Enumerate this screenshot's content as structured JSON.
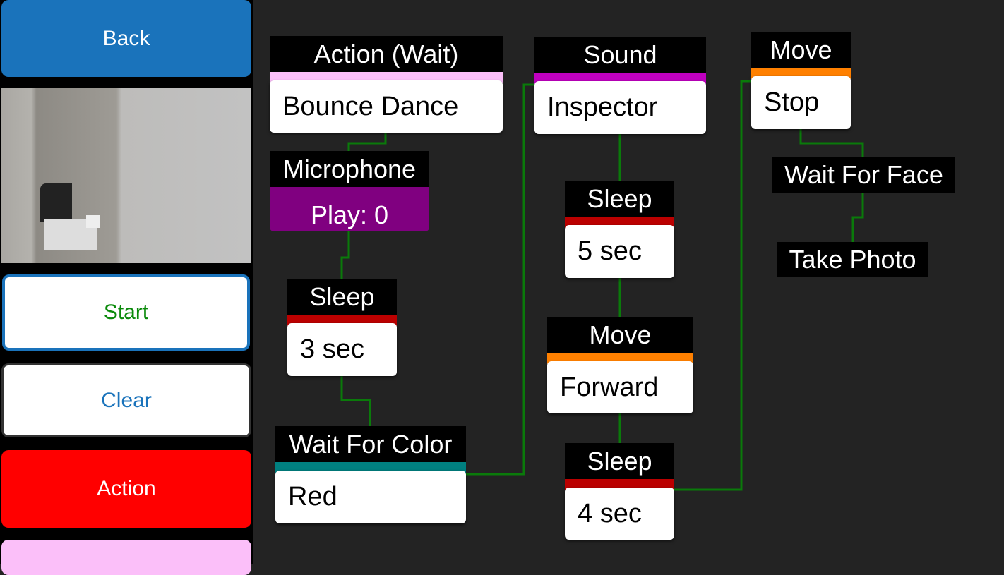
{
  "sidebar": {
    "back": "Back",
    "start": "Start",
    "clear": "Clear",
    "action": "Action"
  },
  "colors": {
    "background": "#232323",
    "connector": "#0a7a0a",
    "back": "#1a73bb",
    "start_text": "#0a8a0a",
    "clear_text": "#1a73bb",
    "action": "#ff0000",
    "pink": "#fbbff9",
    "purple": "#800080",
    "magenta": "#c000c0",
    "red": "#bb0000",
    "teal": "#008080",
    "orange": "#ff8000"
  },
  "nodes": [
    {
      "title": "Action (Wait)",
      "value": "Bounce Dance"
    },
    {
      "title": "Microphone",
      "value": "Play: 0"
    },
    {
      "title": "Sleep",
      "value": "3 sec"
    },
    {
      "title": "Wait For Color",
      "value": "Red"
    },
    {
      "title": "Sound",
      "value": "Inspector"
    },
    {
      "title": "Sleep",
      "value": "5 sec"
    },
    {
      "title": "Move",
      "value": "Forward"
    },
    {
      "title": "Sleep",
      "value": "4 sec"
    },
    {
      "title": "Move",
      "value": "Stop"
    },
    {
      "title": "Wait For Face"
    },
    {
      "title": "Take Photo"
    }
  ]
}
